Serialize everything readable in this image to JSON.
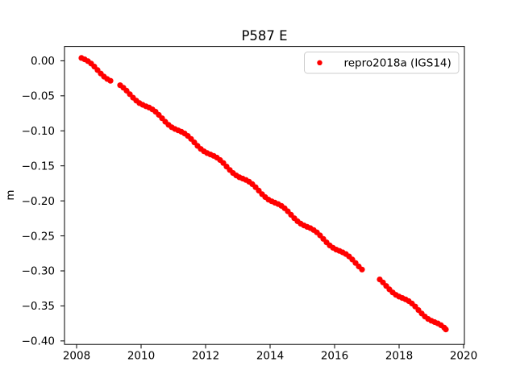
{
  "figure": {
    "title": "P587 E",
    "ylabel": "m",
    "background_color": "#ffffff",
    "spine_color": "#000000"
  },
  "legend": {
    "label": "repro2018a (IGS14)",
    "marker": "red-dot",
    "marker_color": "#ff0000",
    "border_color": "#cccccc",
    "position": "upper right"
  },
  "chart_data": {
    "type": "scatter",
    "title": "P587 E",
    "xlabel": "",
    "ylabel": "m",
    "grid": false,
    "legend_position": "upper right",
    "xlim": [
      2007.625,
      2020.025
    ],
    "ylim": [
      -0.405,
      0.0205
    ],
    "x_ticks": [
      2008,
      2010,
      2012,
      2014,
      2016,
      2018,
      2020
    ],
    "x_tick_labels": [
      "2008",
      "2010",
      "2012",
      "2014",
      "2016",
      "2018",
      "2020"
    ],
    "y_ticks": [
      0.0,
      -0.05,
      -0.1,
      -0.15,
      -0.2,
      -0.25,
      -0.3,
      -0.35,
      -0.4
    ],
    "y_tick_labels": [
      "0.00",
      "−0.05",
      "−0.10",
      "−0.15",
      "−0.20",
      "−0.25",
      "−0.30",
      "−0.35",
      "−0.40"
    ],
    "data_gaps_years": [
      [
        2009.07,
        2009.33
      ],
      [
        2016.87,
        2017.38
      ]
    ],
    "trend_slope_m_per_yr": -0.0344,
    "marker_px_radius": 3.6,
    "series": [
      {
        "name": "repro2018a (IGS14)",
        "color": "#ff0000",
        "points": [
          [
            2008.15,
            0.004
          ],
          [
            2008.25,
            0.0021
          ],
          [
            2008.35,
            -0.0005
          ],
          [
            2008.45,
            -0.0039
          ],
          [
            2008.55,
            -0.0083
          ],
          [
            2008.65,
            -0.0132
          ],
          [
            2008.75,
            -0.0182
          ],
          [
            2008.85,
            -0.0225
          ],
          [
            2008.95,
            -0.026
          ],
          [
            2009.05,
            -0.0285
          ],
          [
            2009.35,
            -0.0349
          ],
          [
            2009.45,
            -0.0384
          ],
          [
            2009.55,
            -0.0427
          ],
          [
            2009.65,
            -0.0477
          ],
          [
            2009.75,
            -0.0526
          ],
          [
            2009.85,
            -0.0569
          ],
          [
            2009.95,
            -0.0604
          ],
          [
            2010.05,
            -0.0629
          ],
          [
            2010.15,
            -0.0649
          ],
          [
            2010.25,
            -0.0668
          ],
          [
            2010.35,
            -0.0694
          ],
          [
            2010.45,
            -0.0728
          ],
          [
            2010.55,
            -0.0772
          ],
          [
            2010.65,
            -0.0821
          ],
          [
            2010.75,
            -0.087
          ],
          [
            2010.85,
            -0.0914
          ],
          [
            2010.95,
            -0.0948
          ],
          [
            2011.05,
            -0.0974
          ],
          [
            2011.15,
            -0.0993
          ],
          [
            2011.25,
            -0.1013
          ],
          [
            2011.35,
            -0.1038
          ],
          [
            2011.45,
            -0.1073
          ],
          [
            2011.55,
            -0.1116
          ],
          [
            2011.65,
            -0.1165
          ],
          [
            2011.75,
            -0.1215
          ],
          [
            2011.85,
            -0.1258
          ],
          [
            2011.95,
            -0.1293
          ],
          [
            2012.05,
            -0.1318
          ],
          [
            2012.15,
            -0.1338
          ],
          [
            2012.25,
            -0.1357
          ],
          [
            2012.35,
            -0.1382
          ],
          [
            2012.45,
            -0.1417
          ],
          [
            2012.55,
            -0.146
          ],
          [
            2012.65,
            -0.151
          ],
          [
            2012.75,
            -0.1559
          ],
          [
            2012.85,
            -0.1603
          ],
          [
            2012.95,
            -0.1637
          ],
          [
            2013.05,
            -0.1663
          ],
          [
            2013.15,
            -0.1682
          ],
          [
            2013.25,
            -0.1701
          ],
          [
            2013.35,
            -0.1727
          ],
          [
            2013.45,
            -0.1761
          ],
          [
            2013.55,
            -0.1805
          ],
          [
            2013.65,
            -0.1854
          ],
          [
            2013.75,
            -0.1904
          ],
          [
            2013.85,
            -0.1947
          ],
          [
            2013.95,
            -0.1982
          ],
          [
            2014.05,
            -0.2007
          ],
          [
            2014.15,
            -0.2026
          ],
          [
            2014.25,
            -0.2046
          ],
          [
            2014.35,
            -0.2071
          ],
          [
            2014.45,
            -0.2106
          ],
          [
            2014.55,
            -0.2149
          ],
          [
            2014.65,
            -0.2199
          ],
          [
            2014.75,
            -0.2248
          ],
          [
            2014.85,
            -0.2291
          ],
          [
            2014.95,
            -0.2326
          ],
          [
            2015.05,
            -0.2351
          ],
          [
            2015.15,
            -0.2371
          ],
          [
            2015.25,
            -0.239
          ],
          [
            2015.35,
            -0.2416
          ],
          [
            2015.45,
            -0.245
          ],
          [
            2015.55,
            -0.2494
          ],
          [
            2015.65,
            -0.2543
          ],
          [
            2015.75,
            -0.2592
          ],
          [
            2015.85,
            -0.2636
          ],
          [
            2015.95,
            -0.267
          ],
          [
            2016.05,
            -0.2696
          ],
          [
            2016.15,
            -0.2715
          ],
          [
            2016.25,
            -0.2735
          ],
          [
            2016.35,
            -0.276
          ],
          [
            2016.45,
            -0.2794
          ],
          [
            2016.55,
            -0.2838
          ],
          [
            2016.65,
            -0.2887
          ],
          [
            2016.75,
            -0.2937
          ],
          [
            2016.85,
            -0.298
          ],
          [
            2017.4,
            -0.3122
          ],
          [
            2017.5,
            -0.3165
          ],
          [
            2017.6,
            -0.3215
          ],
          [
            2017.7,
            -0.3264
          ],
          [
            2017.8,
            -0.3307
          ],
          [
            2017.9,
            -0.3342
          ],
          [
            2018.0,
            -0.3367
          ],
          [
            2018.1,
            -0.3387
          ],
          [
            2018.2,
            -0.3406
          ],
          [
            2018.3,
            -0.3432
          ],
          [
            2018.4,
            -0.3466
          ],
          [
            2018.5,
            -0.3509
          ],
          [
            2018.6,
            -0.3559
          ],
          [
            2018.7,
            -0.3608
          ],
          [
            2018.8,
            -0.3652
          ],
          [
            2018.9,
            -0.3686
          ],
          [
            2019.0,
            -0.3712
          ],
          [
            2019.1,
            -0.3731
          ],
          [
            2019.2,
            -0.375
          ],
          [
            2019.3,
            -0.3776
          ],
          [
            2019.4,
            -0.381
          ],
          [
            2019.45,
            -0.3836
          ]
        ]
      }
    ]
  }
}
